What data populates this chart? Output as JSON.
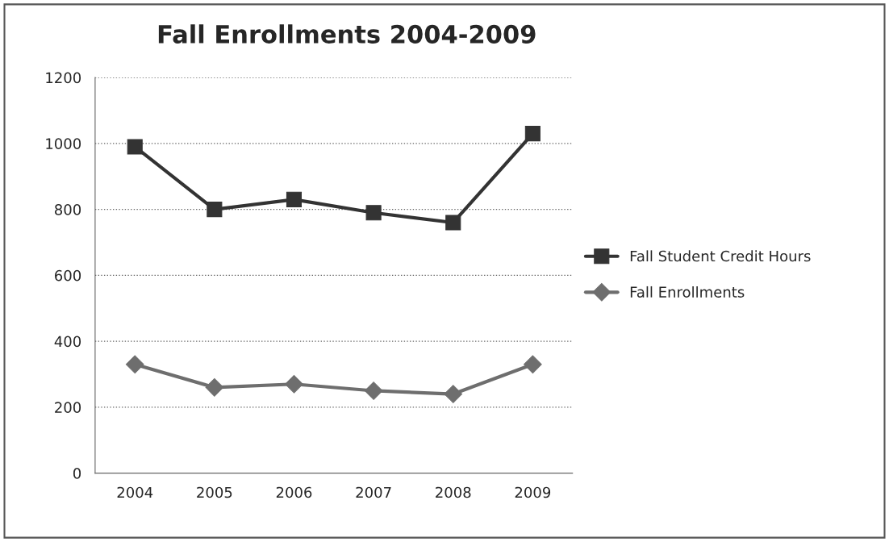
{
  "chart_data": {
    "type": "line",
    "title": "Fall Enrollments 2004-2009",
    "categories": [
      "2004",
      "2005",
      "2006",
      "2007",
      "2008",
      "2009"
    ],
    "series": [
      {
        "name": "Fall Student Credit Hours",
        "color": "#333333",
        "marker": "square",
        "values": [
          990,
          800,
          830,
          790,
          760,
          1030
        ]
      },
      {
        "name": "Fall Enrollments",
        "color": "#6e6e6e",
        "marker": "diamond",
        "values": [
          330,
          260,
          270,
          250,
          240,
          330
        ]
      }
    ],
    "ylim": [
      0,
      1200
    ],
    "yticks": [
      0,
      200,
      400,
      600,
      800,
      1000,
      1200
    ],
    "grid": "y",
    "legend": "right",
    "line_style": "solid"
  }
}
